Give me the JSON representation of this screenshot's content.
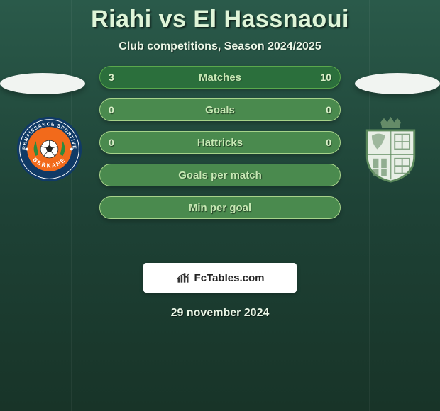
{
  "title": "Riahi vs El Hassnaoui",
  "subtitle": "Club competitions, Season 2024/2025",
  "date": "29 november 2024",
  "badge_text": "FcTables.com",
  "title_color": "#dff5d8",
  "text_color": "#eaf6e6",
  "bar_label_color": "#c7e9b4",
  "bar_value_color": "#d9f0c8",
  "bars": [
    {
      "label": "Matches",
      "left": "3",
      "right": "10",
      "border": "#5aa84c",
      "bg": "#2b6f3c"
    },
    {
      "label": "Goals",
      "left": "0",
      "right": "0",
      "border": "#a7d38a",
      "bg": "#4a8a4e"
    },
    {
      "label": "Hattricks",
      "left": "0",
      "right": "0",
      "border": "#a7d38a",
      "bg": "#4a8a4e"
    },
    {
      "label": "Goals per match",
      "left": "",
      "right": "",
      "border": "#a7d38a",
      "bg": "#4a8a4e"
    },
    {
      "label": "Min per goal",
      "left": "",
      "right": "",
      "border": "#a7d38a",
      "bg": "#4a8a4e"
    }
  ],
  "crest_left": {
    "ring_outer": "#103a66",
    "ring_text_bg": "#0f3a63",
    "center_bg": "#f26a1b",
    "ball": "#ffffff",
    "leaf": "#2d8a3d",
    "top": "RENAISSANCE SPORTIVE",
    "bottom": "BERKANE"
  },
  "crest_right": {
    "outline": "#5c8a5c",
    "fill": "#e8efe6",
    "crown": "#6d926d",
    "accent": "#6d926d"
  }
}
